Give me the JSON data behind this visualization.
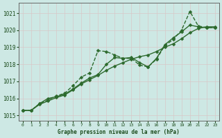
{
  "title": "Graphe pression niveau de la mer (hPa)",
  "background_color": "#cde8e4",
  "grid_color": "#b8d8d4",
  "xlim": [
    -0.5,
    23.5
  ],
  "ylim": [
    1014.7,
    1021.6
  ],
  "yticks": [
    1015,
    1016,
    1017,
    1018,
    1019,
    1020,
    1021
  ],
  "xticks": [
    0,
    1,
    2,
    3,
    4,
    5,
    6,
    7,
    8,
    9,
    10,
    11,
    12,
    13,
    14,
    15,
    16,
    17,
    18,
    19,
    20,
    21,
    22,
    23
  ],
  "series": [
    {
      "x": [
        0,
        1,
        2,
        3,
        4,
        5,
        6,
        7,
        8,
        9,
        10,
        11,
        12,
        13,
        14,
        15,
        16,
        17,
        18,
        19,
        20,
        21,
        22,
        23
      ],
      "y": [
        1015.3,
        1015.3,
        1015.65,
        1015.85,
        1016.05,
        1016.2,
        1016.5,
        1016.85,
        1017.1,
        1017.35,
        1017.65,
        1017.9,
        1018.1,
        1018.3,
        1018.45,
        1018.55,
        1018.75,
        1019.0,
        1019.2,
        1019.5,
        1019.85,
        1020.1,
        1020.2,
        1020.2
      ],
      "marker": "D",
      "markersize": 2.5,
      "linestyle": "-",
      "linewidth": 1.0,
      "color": "#2d6a2d"
    },
    {
      "x": [
        0,
        1,
        2,
        3,
        4,
        5,
        6,
        7,
        8,
        9,
        10,
        11,
        12,
        13,
        14,
        15,
        16,
        17,
        18,
        19,
        20,
        21,
        22,
        23
      ],
      "y": [
        1015.3,
        1015.3,
        1015.7,
        1016.0,
        1016.1,
        1016.25,
        1016.55,
        1016.9,
        1017.2,
        1017.4,
        1018.0,
        1018.4,
        1018.35,
        1018.4,
        1018.1,
        1017.85,
        1018.35,
        1019.15,
        1019.55,
        1019.9,
        1020.3,
        1020.2,
        1020.15,
        1020.15
      ],
      "marker": "D",
      "markersize": 2.5,
      "linestyle": "-",
      "linewidth": 1.0,
      "color": "#2d6a2d"
    },
    {
      "x": [
        0,
        1,
        2,
        3,
        4,
        5,
        6,
        7,
        8,
        9,
        10,
        11,
        12,
        13,
        14,
        15,
        16,
        17,
        18,
        19,
        20,
        21,
        22,
        23
      ],
      "y": [
        1015.3,
        1015.3,
        1015.7,
        1015.9,
        1016.15,
        1016.3,
        1016.75,
        1017.25,
        1017.5,
        1018.8,
        1018.75,
        1018.55,
        1018.35,
        1018.35,
        1017.95,
        1017.85,
        1018.3,
        1019.1,
        1019.45,
        1020.0,
        1021.1,
        1020.25,
        1020.15,
        1020.15
      ],
      "marker": "D",
      "markersize": 2.5,
      "linestyle": "--",
      "linewidth": 1.0,
      "color": "#2d6a2d"
    }
  ]
}
